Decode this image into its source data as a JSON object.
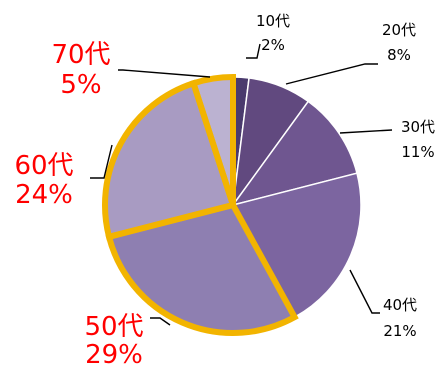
{
  "chart_data": {
    "type": "pie",
    "title": "",
    "categories": [
      "10代",
      "20代",
      "30代",
      "40代",
      "50代",
      "60代",
      "70代"
    ],
    "values": [
      2,
      8,
      11,
      21,
      29,
      24,
      5
    ],
    "value_labels": [
      "2%",
      "8%",
      "11%",
      "21%",
      "29%",
      "24%",
      "5%"
    ],
    "slice_colors": [
      "#4a3a6d",
      "#61497f",
      "#6f5690",
      "#7c65a0",
      "#8e7fb1",
      "#a89bc2",
      "#bbb2d1"
    ],
    "highlighted": [
      false,
      false,
      false,
      false,
      true,
      true,
      true
    ],
    "highlight_stroke": "#f2b400",
    "label_colors": {
      "normal": "#000000",
      "highlighted": "#ff0000"
    }
  }
}
